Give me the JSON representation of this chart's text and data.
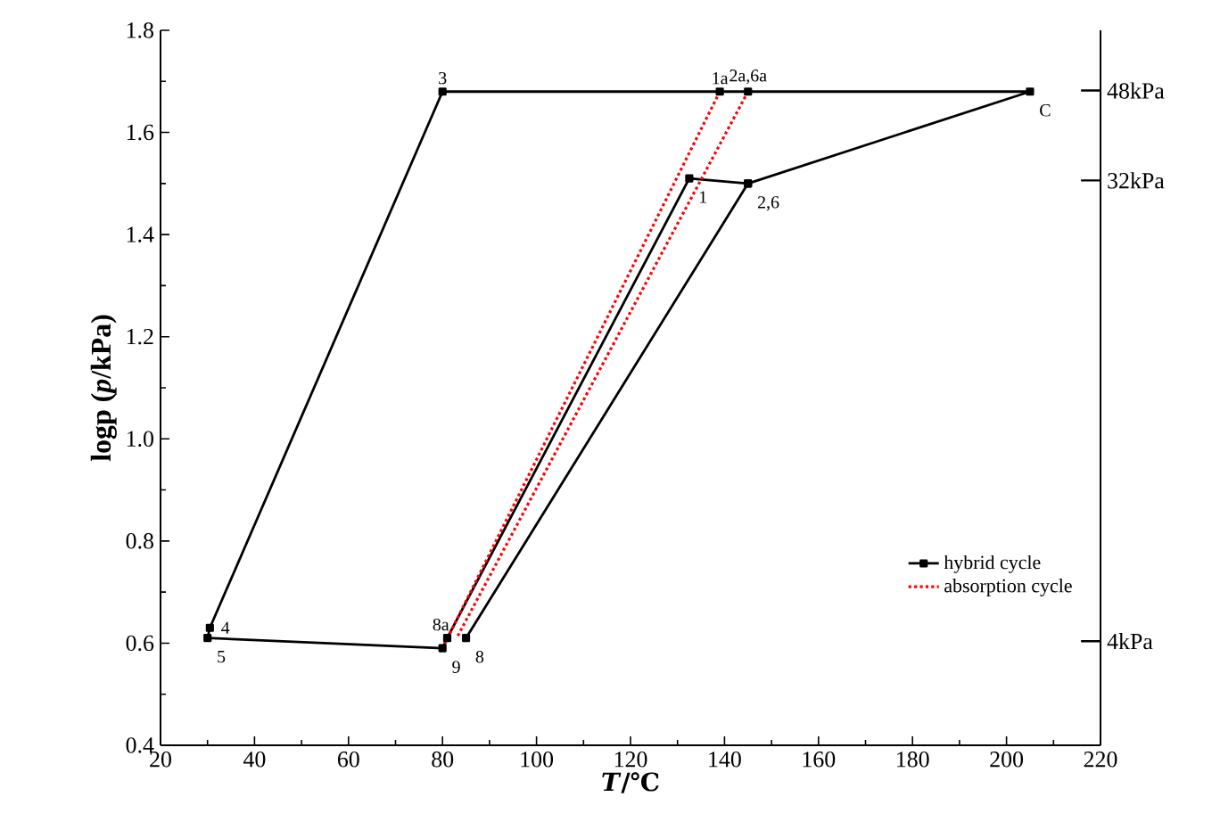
{
  "chart_data": {
    "type": "line",
    "xlabel": "*T*/℃",
    "ylabel": "logp  (*p*/kPa)",
    "xlim": [
      20,
      220
    ],
    "xticks": [
      20,
      40,
      60,
      80,
      100,
      120,
      140,
      160,
      180,
      200,
      220
    ],
    "ylim": [
      0.4,
      1.8
    ],
    "yticks": [
      {
        "value": 0.4,
        "label": "0.4"
      },
      {
        "value": 0.6,
        "label": "0.6"
      },
      {
        "value": 0.8,
        "label": "0.8"
      },
      {
        "value": 1.0,
        "label": "1.0"
      },
      {
        "value": 1.2,
        "label": "1.2"
      },
      {
        "value": 1.4,
        "label": "1.4"
      },
      {
        "value": 1.6,
        "label": "1.6"
      },
      {
        "value": 1.8,
        "label": "1.8"
      }
    ],
    "y2lim": [
      2.5,
      63
    ],
    "y2ticks": [
      {
        "value": 48,
        "label": "48kPa"
      },
      {
        "value": 32,
        "label": "32kPa"
      },
      {
        "value": 4,
        "label": "4kPa"
      }
    ],
    "log": "y2",
    "legend": "bottom right",
    "grid": false,
    "series": [
      {
        "name": "hybrid cycle",
        "color": "#000000",
        "marker": "square",
        "line_style": "solid",
        "x": [
          85,
          145,
          205,
          145,
          139,
          80,
          30.5,
          30,
          80,
          81,
          132.5,
          145
        ],
        "values": [
          0.61,
          1.5,
          1.68,
          1.68,
          1.68,
          1.68,
          0.63,
          0.61,
          0.59,
          0.61,
          1.51,
          1.5
        ]
      },
      {
        "name": "absorption cycle",
        "color": "#ff0000",
        "marker": "none",
        "line_style": "dotted",
        "x": [
          139,
          80,
          null,
          145,
          83
        ],
        "values": [
          1.68,
          0.59,
          null,
          1.68,
          0.61
        ]
      }
    ],
    "annotations": [
      {
        "text": "3",
        "x": 80,
        "y": 1.68
      },
      {
        "text": "1a",
        "x": 139,
        "y": 1.68
      },
      {
        "text": "2a,6a",
        "x": 145,
        "y": 1.68
      },
      {
        "text": "C",
        "x": 205,
        "y": 1.68
      },
      {
        "text": "1",
        "x": 132.5,
        "y": 1.51
      },
      {
        "text": "2,6",
        "x": 145,
        "y": 1.5
      },
      {
        "text": "4",
        "x": 30.5,
        "y": 0.63
      },
      {
        "text": "5",
        "x": 30,
        "y": 0.61
      },
      {
        "text": "8a",
        "x": 83,
        "y": 0.61
      },
      {
        "text": "9",
        "x": 80,
        "y": 0.59
      },
      {
        "text": "8",
        "x": 85,
        "y": 0.61
      }
    ]
  }
}
